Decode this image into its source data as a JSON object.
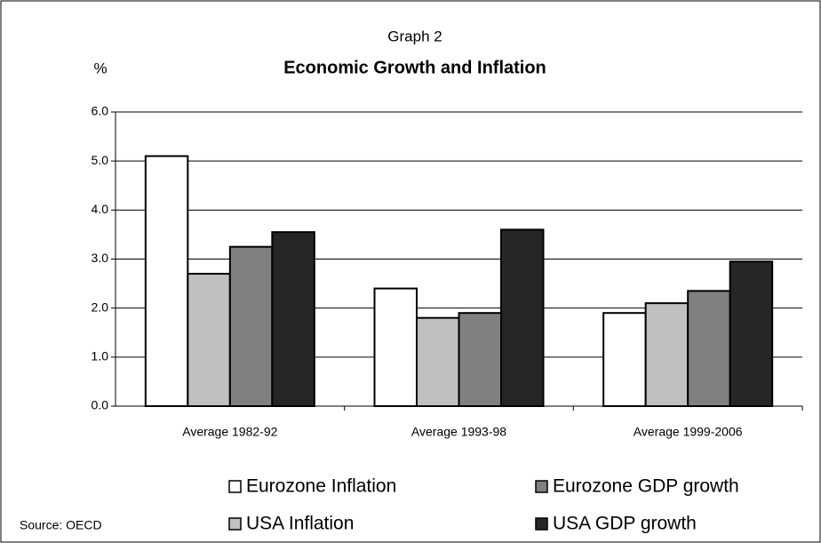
{
  "chart_data": {
    "type": "bar",
    "title": "Economic Growth and Inflation",
    "subtitle": "Graph 2",
    "y_label": "%",
    "source": "Source: OECD",
    "categories": [
      "Average 1982-92",
      "Average 1993-98",
      "Average 1999-2006"
    ],
    "series": [
      {
        "name": "Eurozone Inflation",
        "color": "#ffffff",
        "values": [
          5.1,
          2.4,
          1.9
        ]
      },
      {
        "name": "USA Inflation",
        "color": "#c0c0c0",
        "values": [
          2.7,
          1.8,
          2.1
        ]
      },
      {
        "name": "Eurozone GDP growth",
        "color": "#808080",
        "values": [
          3.25,
          1.9,
          2.35
        ]
      },
      {
        "name": "USA GDP growth",
        "color": "#262626",
        "values": [
          3.55,
          3.6,
          2.95
        ]
      }
    ],
    "ylim": [
      0,
      6
    ],
    "yticks": [
      {
        "value": 0,
        "label": "0.0"
      },
      {
        "value": 1,
        "label": "1.0"
      },
      {
        "value": 2,
        "label": "2.0"
      },
      {
        "value": 3,
        "label": "3.0"
      },
      {
        "value": 4,
        "label": "4.0"
      },
      {
        "value": 5,
        "label": "5.0"
      },
      {
        "value": 6,
        "label": "6.0"
      }
    ],
    "grid": true
  }
}
